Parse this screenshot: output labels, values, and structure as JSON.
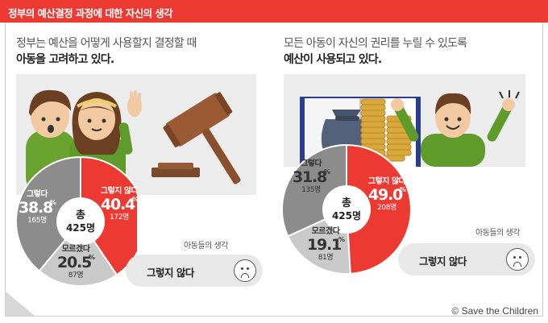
{
  "header": {
    "title": "정부의 예산결정 과정에 대한 자신의 생각"
  },
  "left_panel": {
    "subtitle_line1": "정부는 예산을 어떻게 사용할지 결정할 때",
    "subtitle_line2": "아동을 고려하고 있다.",
    "total_label": "총",
    "total_value": "425명",
    "opinion_caption": "아동들의 생각",
    "opinion_answer": "그렇지 않다"
  },
  "right_panel": {
    "subtitle_line1": "모든 아동이 자신의 권리를 누릴 수 있도록",
    "subtitle_line2": "예산이 사용되고 있다.",
    "total_label": "총",
    "total_value": "425명",
    "opinion_caption": "아동들의 생각",
    "opinion_answer": "그렇지 않다"
  },
  "credit": "© Save the Children",
  "colors": {
    "red": "#ec3a33",
    "dark_gray": "#8c8c8c",
    "light_gray": "#c9c9c9",
    "hair": "#6b3f22",
    "shirt_green": "#5f9b2a"
  },
  "icons": [
    "children-icon",
    "gavel-icon",
    "money-bag-icon",
    "coin-stack-icon",
    "book-icon",
    "child-cheering-icon",
    "sad-face-icon"
  ],
  "chart_data": [
    {
      "type": "pie",
      "title": "정부는 예산을 어떻게 사용할지 결정할 때 아동을 고려하고 있다.",
      "total": "총 425명",
      "slices": [
        {
          "label": "그렇지 않다",
          "pct": "40.4",
          "count": "172명",
          "value": 40.4,
          "color": "#ec3a33"
        },
        {
          "label": "모르겠다",
          "pct": "20.5",
          "count": "87명",
          "value": 20.5,
          "color": "#c9c9c9"
        },
        {
          "label": "그렇다",
          "pct": "38.8",
          "count": "165명",
          "value": 38.8,
          "color": "#8c8c8c"
        }
      ]
    },
    {
      "type": "pie",
      "title": "모든 아동이 자신의 권리를 누릴 수 있도록 예산이 사용되고 있다.",
      "total": "총 425명",
      "slices": [
        {
          "label": "그렇지 않다",
          "pct": "49.0",
          "count": "208명",
          "value": 49.0,
          "color": "#ec3a33"
        },
        {
          "label": "모르겠다",
          "pct": "19.1",
          "count": "81명",
          "value": 19.1,
          "color": "#c9c9c9"
        },
        {
          "label": "그렇다",
          "pct": "31.8",
          "count": "135명",
          "value": 31.8,
          "color": "#8c8c8c"
        }
      ]
    }
  ]
}
